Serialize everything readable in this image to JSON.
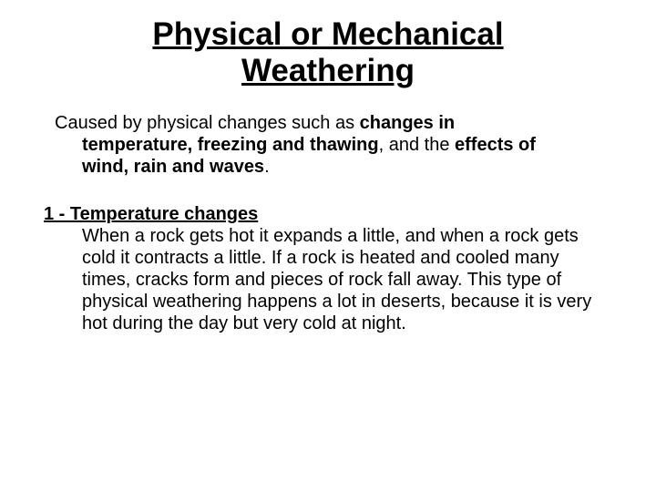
{
  "title": "Physical or Mechanical Weathering",
  "intro": {
    "line1_prefix": "Caused by physical changes such as ",
    "line1_bold": "changes in",
    "line2_bold_a": "temperature, freezing and thawing",
    "line2_mid": ", and the ",
    "line2_bold_b": "effects of",
    "line3_bold": "wind, rain and waves",
    "line3_suffix": "."
  },
  "section": {
    "heading": "1 - Temperature changes",
    "body": "When a rock gets hot it expands a little, and when a rock gets cold it contracts a little. If a rock is heated and cooled many times, cracks form and pieces of rock fall away. This type of physical weathering happens a lot in deserts, because it is very hot during the day but very cold at night."
  },
  "styles": {
    "background_color": "#ffffff",
    "text_color": "#000000",
    "title_fontsize": 35,
    "body_fontsize": 20
  }
}
